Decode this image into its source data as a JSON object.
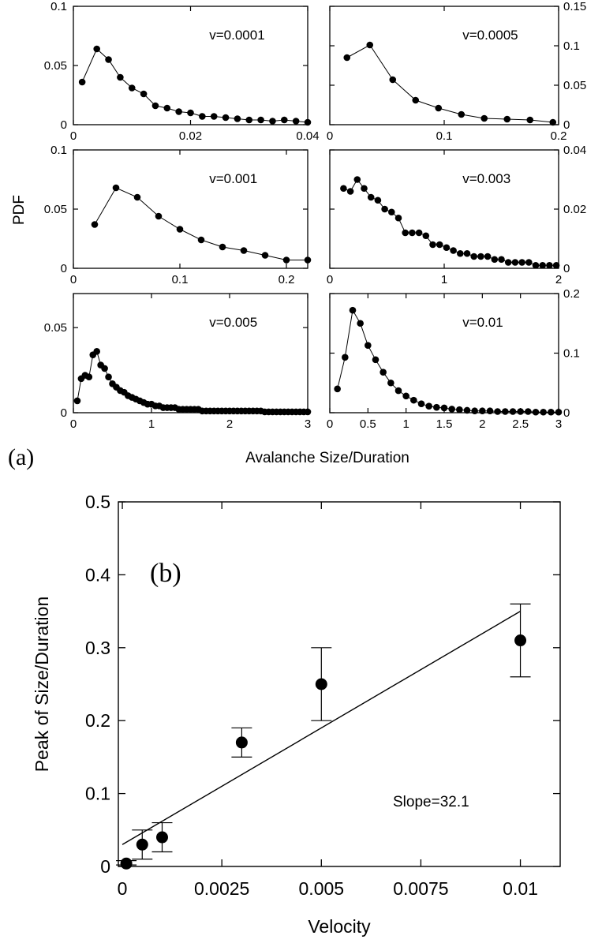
{
  "figure": {
    "panel_a_tag": "(a)",
    "panel_a_xlabel": "Avalanche Size/Duration",
    "panel_a_ylabel": "PDF"
  },
  "chart_data": [
    {
      "id": "a1",
      "type": "line",
      "annotation": "v=0.0001",
      "xlim": [
        0,
        0.04
      ],
      "ylim": [
        0,
        0.1
      ],
      "xticks": [
        "0",
        "0.02",
        "0.04"
      ],
      "yticks": [
        "0",
        "0.05",
        "0.1"
      ],
      "series": [
        {
          "x": [
            0.0015,
            0.004,
            0.006,
            0.008,
            0.01,
            0.012,
            0.014,
            0.016,
            0.018,
            0.02,
            0.022,
            0.024,
            0.026,
            0.028,
            0.03,
            0.032,
            0.034,
            0.036,
            0.038,
            0.04
          ],
          "y": [
            0.036,
            0.064,
            0.055,
            0.04,
            0.031,
            0.026,
            0.016,
            0.014,
            0.011,
            0.01,
            0.007,
            0.007,
            0.006,
            0.005,
            0.004,
            0.004,
            0.003,
            0.004,
            0.003,
            0.002
          ]
        }
      ]
    },
    {
      "id": "a2",
      "type": "line",
      "annotation": "v=0.0005",
      "xlim": [
        0,
        0.2
      ],
      "ylim": [
        0,
        0.15
      ],
      "xticks": [
        "0",
        "0.1",
        "0.2"
      ],
      "yticks": [
        "0",
        "0.05",
        "0.1",
        "0.15"
      ],
      "series": [
        {
          "x": [
            0.015,
            0.035,
            0.055,
            0.075,
            0.095,
            0.115,
            0.135,
            0.155,
            0.175,
            0.195
          ],
          "y": [
            0.085,
            0.101,
            0.057,
            0.031,
            0.021,
            0.013,
            0.008,
            0.007,
            0.006,
            0.003
          ]
        }
      ]
    },
    {
      "id": "a3",
      "type": "line",
      "annotation": "v=0.001",
      "xlim": [
        0,
        0.22
      ],
      "ylim": [
        0,
        0.1
      ],
      "xticks": [
        "0",
        "0.1",
        "0.2"
      ],
      "yticks": [
        "0",
        "0.05",
        "0.1"
      ],
      "series": [
        {
          "x": [
            0.02,
            0.04,
            0.06,
            0.08,
            0.1,
            0.12,
            0.14,
            0.16,
            0.18,
            0.2,
            0.22
          ],
          "y": [
            0.037,
            0.068,
            0.06,
            0.044,
            0.033,
            0.024,
            0.018,
            0.015,
            0.011,
            0.007,
            0.007
          ]
        }
      ]
    },
    {
      "id": "a4",
      "type": "line",
      "annotation": "v=0.003",
      "xlim": [
        0,
        2
      ],
      "ylim": [
        0,
        0.04
      ],
      "xticks": [
        "0",
        "1",
        "2"
      ],
      "yticks": [
        "0",
        "0.02",
        "0.04"
      ],
      "series": [
        {
          "x": [
            0.12,
            0.18,
            0.24,
            0.3,
            0.36,
            0.42,
            0.48,
            0.54,
            0.6,
            0.66,
            0.72,
            0.78,
            0.84,
            0.9,
            0.96,
            1.02,
            1.08,
            1.14,
            1.2,
            1.26,
            1.32,
            1.38,
            1.44,
            1.5,
            1.56,
            1.62,
            1.68,
            1.74,
            1.8,
            1.86,
            1.92,
            1.98
          ],
          "y": [
            0.027,
            0.026,
            0.03,
            0.027,
            0.024,
            0.023,
            0.02,
            0.019,
            0.017,
            0.012,
            0.012,
            0.012,
            0.011,
            0.008,
            0.008,
            0.007,
            0.006,
            0.005,
            0.005,
            0.004,
            0.004,
            0.004,
            0.003,
            0.003,
            0.002,
            0.002,
            0.002,
            0.002,
            0.001,
            0.001,
            0.001,
            0.001
          ]
        }
      ]
    },
    {
      "id": "a5",
      "type": "line",
      "annotation": "v=0.005",
      "xlim": [
        0,
        3
      ],
      "ylim": [
        0,
        0.07
      ],
      "xticks": [
        "0",
        "1",
        "2",
        "3"
      ],
      "yticks": [
        "0",
        "0.05"
      ],
      "series": [
        {
          "x": [
            0.05,
            0.1,
            0.15,
            0.2,
            0.25,
            0.3,
            0.35,
            0.4,
            0.45,
            0.5,
            0.55,
            0.6,
            0.65,
            0.7,
            0.75,
            0.8,
            0.85,
            0.9,
            0.95,
            1.0,
            1.05,
            1.1,
            1.15,
            1.2,
            1.25,
            1.3,
            1.35,
            1.4,
            1.45,
            1.5,
            1.55,
            1.6,
            1.65,
            1.7,
            1.75,
            1.8,
            1.85,
            1.9,
            1.95,
            2.0,
            2.05,
            2.1,
            2.15,
            2.2,
            2.25,
            2.3,
            2.35,
            2.4,
            2.45,
            2.5,
            2.55,
            2.6,
            2.65,
            2.7,
            2.75,
            2.8,
            2.85,
            2.9,
            2.95,
            3.0
          ],
          "y": [
            0.007,
            0.02,
            0.022,
            0.021,
            0.034,
            0.036,
            0.028,
            0.026,
            0.021,
            0.017,
            0.015,
            0.013,
            0.012,
            0.01,
            0.009,
            0.008,
            0.007,
            0.006,
            0.005,
            0.005,
            0.004,
            0.004,
            0.003,
            0.003,
            0.003,
            0.003,
            0.002,
            0.002,
            0.002,
            0.002,
            0.002,
            0.002,
            0.001,
            0.001,
            0.001,
            0.001,
            0.001,
            0.001,
            0.001,
            0.001,
            0.001,
            0.001,
            0.001,
            0.001,
            0.001,
            0.001,
            0.001,
            0.001,
            0.0005,
            0.0005,
            0.0005,
            0.0005,
            0.0005,
            0.0005,
            0.0005,
            0.0005,
            0.0005,
            0.0005,
            0.0005,
            0.0005
          ]
        }
      ]
    },
    {
      "id": "a6",
      "type": "line",
      "annotation": "v=0.01",
      "xlim": [
        0,
        3
      ],
      "ylim": [
        0,
        0.2
      ],
      "xticks": [
        "0",
        "0.5",
        "1",
        "1.5",
        "2",
        "2.5",
        "3"
      ],
      "yticks": [
        "0",
        "0.1",
        "0.2"
      ],
      "series": [
        {
          "x": [
            0.1,
            0.2,
            0.3,
            0.4,
            0.5,
            0.6,
            0.7,
            0.8,
            0.9,
            1.0,
            1.1,
            1.2,
            1.3,
            1.4,
            1.5,
            1.6,
            1.7,
            1.8,
            1.9,
            2.0,
            2.1,
            2.2,
            2.3,
            2.4,
            2.5,
            2.6,
            2.7,
            2.8,
            2.9,
            3.0
          ],
          "y": [
            0.04,
            0.093,
            0.172,
            0.15,
            0.113,
            0.089,
            0.068,
            0.05,
            0.037,
            0.028,
            0.021,
            0.015,
            0.011,
            0.009,
            0.008,
            0.006,
            0.005,
            0.004,
            0.003,
            0.003,
            0.003,
            0.002,
            0.002,
            0.002,
            0.002,
            0.002,
            0.001,
            0.001,
            0.001,
            0.001
          ]
        }
      ]
    },
    {
      "id": "b",
      "type": "scatter",
      "panel_tag": "(b)",
      "xlabel": "Velocity",
      "ylabel": "Peak of Size/Duration",
      "annotation": "Slope=32.1",
      "xlim": [
        -0.0001,
        0.011
      ],
      "ylim": [
        0,
        0.5
      ],
      "xticks": [
        {
          "v": 0,
          "label": "0"
        },
        {
          "v": 0.0025,
          "label": "0.0025"
        },
        {
          "v": 0.005,
          "label": "0.005"
        },
        {
          "v": 0.0075,
          "label": "0.0075"
        },
        {
          "v": 0.01,
          "label": "0.01"
        }
      ],
      "yticks": [
        {
          "v": 0,
          "label": "0"
        },
        {
          "v": 0.1,
          "label": "0.1"
        },
        {
          "v": 0.2,
          "label": "0.2"
        },
        {
          "v": 0.3,
          "label": "0.3"
        },
        {
          "v": 0.4,
          "label": "0.4"
        },
        {
          "v": 0.5,
          "label": "0.5"
        }
      ],
      "points": [
        {
          "x": 0.0001,
          "y": 0.004,
          "err_low": 0.002,
          "err_high": 0.008
        },
        {
          "x": 0.0005,
          "y": 0.03,
          "err_low": 0.01,
          "err_high": 0.05
        },
        {
          "x": 0.001,
          "y": 0.04,
          "err_low": 0.02,
          "err_high": 0.06
        },
        {
          "x": 0.003,
          "y": 0.17,
          "err_low": 0.15,
          "err_high": 0.19
        },
        {
          "x": 0.005,
          "y": 0.25,
          "err_low": 0.2,
          "err_high": 0.3
        },
        {
          "x": 0.01,
          "y": 0.31,
          "err_low": 0.26,
          "err_high": 0.36
        }
      ],
      "fit_line": {
        "x": [
          0,
          0.01
        ],
        "y": [
          0.03,
          0.35
        ]
      }
    }
  ]
}
